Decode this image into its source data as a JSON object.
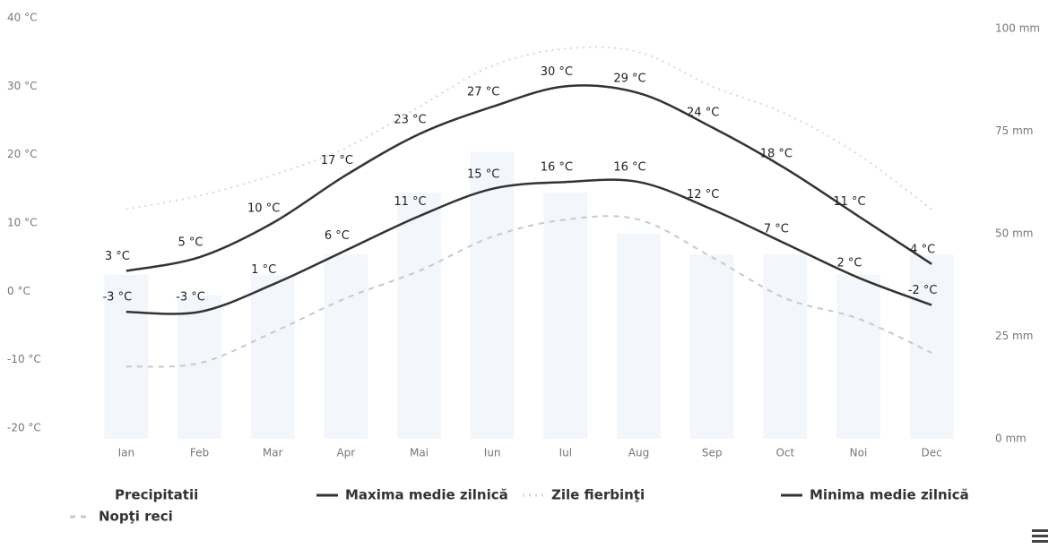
{
  "chart_data": {
    "type": "line",
    "categories": [
      "Ian",
      "Feb",
      "Mar",
      "Apr",
      "Mai",
      "Iun",
      "Iul",
      "Aug",
      "Sep",
      "Oct",
      "Noi",
      "Dec"
    ],
    "ylim": [
      -20,
      40
    ],
    "yticks": [
      {
        "value": -20,
        "label": "-20 °C"
      },
      {
        "value": -10,
        "label": "-10 °C"
      },
      {
        "value": 0,
        "label": "0 °C"
      },
      {
        "value": 10,
        "label": "10 °C"
      },
      {
        "value": 20,
        "label": "20 °C"
      },
      {
        "value": 30,
        "label": "30 °C"
      },
      {
        "value": 40,
        "label": "40 °C"
      }
    ],
    "y2lim": [
      0,
      100
    ],
    "y2ticks": [
      {
        "value": 0,
        "label": "0 mm"
      },
      {
        "value": 25,
        "label": "25 mm"
      },
      {
        "value": 50,
        "label": "50 mm"
      },
      {
        "value": 75,
        "label": "75 mm"
      },
      {
        "value": 100,
        "label": "100 mm"
      }
    ],
    "series": [
      {
        "name": "Precipitatii",
        "color": "#dde8f4",
        "style": "bar",
        "axis": "y2",
        "values": [
          40,
          35,
          40,
          45,
          60,
          70,
          60,
          50,
          45,
          45,
          40,
          45
        ]
      },
      {
        "name": "Maxima medie zilnică",
        "color": "#333333",
        "style": "solid",
        "values": [
          3,
          5,
          10,
          17,
          23,
          27,
          30,
          29,
          24,
          18,
          11,
          4
        ],
        "value_labels": [
          "3 °C",
          "5 °C",
          "10 °C",
          "17 °C",
          "23 °C",
          "27 °C",
          "30 °C",
          "29 °C",
          "24 °C",
          "18 °C",
          "11 °C",
          "4 °C"
        ]
      },
      {
        "name": "Zile fierbinţi",
        "color": "#d8d8d8",
        "style": "dotted",
        "values": [
          12,
          14,
          17,
          21,
          27,
          33,
          35.5,
          35,
          30,
          26,
          20,
          12
        ]
      },
      {
        "name": "Minima medie zilnică",
        "color": "#333333",
        "style": "solid",
        "values": [
          -3,
          -3,
          1,
          6,
          11,
          15,
          16,
          16,
          12,
          7,
          2,
          -2
        ],
        "value_labels": [
          "-3 °C",
          "-3 °C",
          "1 °C",
          "6 °C",
          "11 °C",
          "15 °C",
          "16 °C",
          "16 °C",
          "12 °C",
          "7 °C",
          "2 °C",
          "-2 °C"
        ]
      },
      {
        "name": "Nopţi reci",
        "color": "#c8c8c8",
        "style": "dashed",
        "values": [
          -11,
          -10.5,
          -6,
          -1,
          3,
          8,
          10.5,
          10.5,
          5,
          -1,
          -4,
          -9
        ]
      }
    ]
  }
}
